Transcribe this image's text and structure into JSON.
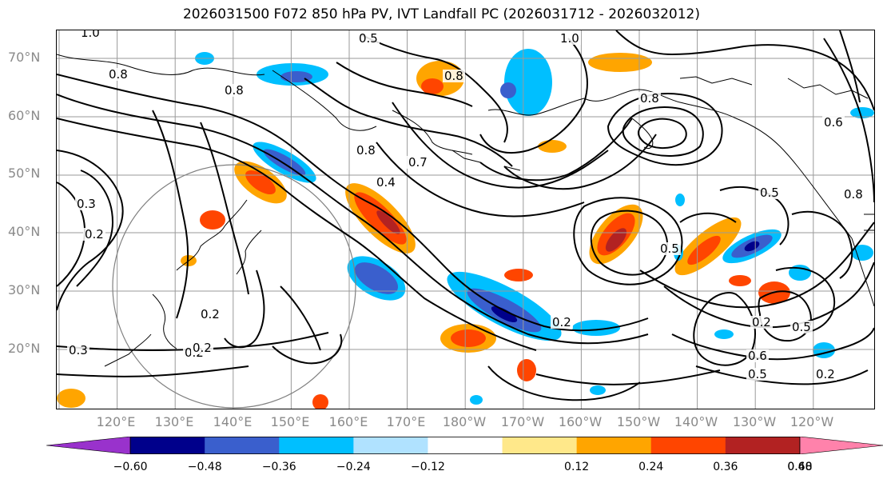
{
  "title": "2026031500 F072 850 hPa PV, IVT Landfall PC (2026031712 - 2026032012)",
  "lat_labels": [
    "70°N",
    "60°N",
    "50°N",
    "40°N",
    "30°N",
    "20°N"
  ],
  "lon_labels": [
    "120°E",
    "130°E",
    "140°E",
    "150°E",
    "160°E",
    "170°E",
    "180°W",
    "170°W",
    "160°W",
    "150°W",
    "140°W",
    "130°W",
    "120°W"
  ],
  "colorbar": {
    "colors": [
      "#9932cc",
      "#00008b",
      "#3a5fcd",
      "#00bfff",
      "#b0e2ff",
      "#ffffff",
      "#ffe88a",
      "#ffa500",
      "#ff4500",
      "#b22222",
      "#ff82ab"
    ],
    "ticks": [
      "−0.60",
      "−0.48",
      "−0.36",
      "−0.24",
      "−0.12",
      "0.12",
      "0.24",
      "0.36",
      "0.48",
      "0.60"
    ]
  },
  "contour_labels": [
    "1.0",
    "0.8",
    "0.8",
    "0.5",
    "0.8",
    "1.0",
    "0.8",
    "0.7",
    "0.4",
    "0.3",
    "0.2",
    "0.5",
    "0.8",
    "0.6",
    "0.5",
    "0.2",
    "0.2",
    "0.2",
    "0.5",
    "0.6",
    "0.5",
    "0.2",
    "0.3",
    "0.2",
    "0.2",
    "0.8"
  ]
}
